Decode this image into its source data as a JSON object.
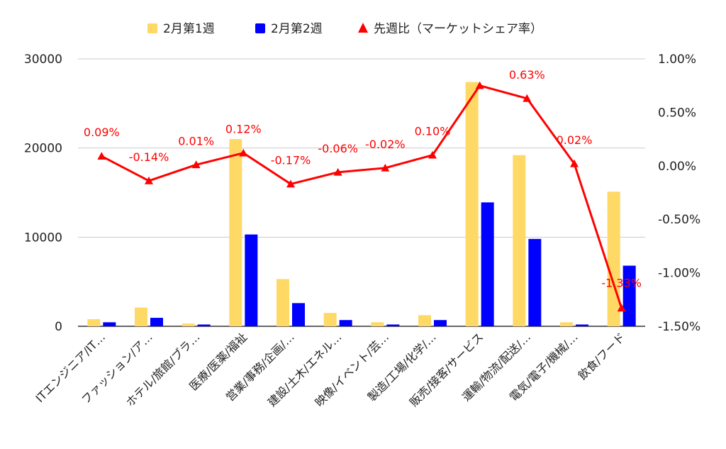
{
  "chart_data": {
    "type": "bar",
    "categories": [
      "ITエンジニア/IT…",
      "ファッション/ア…",
      "ホテル/旅館/ブラ…",
      "医療/医薬/福祉",
      "営業/事務/企画/…",
      "建設/土木/エネル…",
      "映像/イベント/芸…",
      "製造/工場/化学/…",
      "販売/接客/サービス",
      "運輸/物流/配送/…",
      "電気/電子/機械/…",
      "飲食/フード"
    ],
    "series": [
      {
        "name": "2月第1週",
        "type": "bar",
        "axis": "left",
        "color": "#ffd966",
        "values": [
          800,
          2100,
          300,
          21000,
          5300,
          1500,
          450,
          1250,
          27400,
          19200,
          450,
          15100
        ]
      },
      {
        "name": "2月第2週",
        "type": "bar",
        "axis": "left",
        "color": "#0000ff",
        "values": [
          450,
          950,
          200,
          10300,
          2600,
          700,
          200,
          700,
          13900,
          9800,
          200,
          6800
        ]
      },
      {
        "name": "先週比（マーケットシェア率）",
        "type": "line",
        "axis": "right",
        "color": "#ff0000",
        "values": [
          0.09,
          -0.14,
          0.01,
          0.12,
          -0.17,
          -0.06,
          -0.02,
          0.1,
          0.75,
          0.63,
          0.02,
          -1.33
        ],
        "labels": [
          "0.09%",
          "-0.14%",
          "0.01%",
          "0.12%",
          "-0.17%",
          "-0.06%",
          "-0.02%",
          "0.10%",
          "",
          "0.63%",
          "0.02%",
          "-1.33%"
        ]
      }
    ],
    "y_left": {
      "min": 0,
      "max": 30000,
      "ticks": [
        0,
        10000,
        20000,
        30000
      ],
      "tick_labels": [
        "0",
        "10000",
        "20000",
        "30000"
      ]
    },
    "y_right": {
      "min": -1.5,
      "max": 1.0,
      "ticks": [
        1.0,
        0.5,
        0.0,
        -0.5,
        -1.0,
        -1.5
      ],
      "tick_labels": [
        "1.00%",
        "0.50%",
        "0.00%",
        "-0.50%",
        "-1.00%",
        "-1.50%"
      ]
    },
    "grid": true,
    "legend": "top-center"
  }
}
